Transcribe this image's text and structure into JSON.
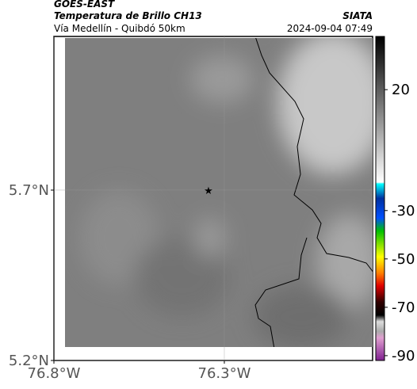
{
  "header": {
    "title": "GOES-EAST",
    "subtitle": "Temperatura de Brillo CH13",
    "source": "SIATA",
    "route": "Vía Medellín - Quibdó 50km",
    "timestamp": "2024-09-04 07:49"
  },
  "map": {
    "xlim": [
      -76.8,
      -75.865
    ],
    "ylim": [
      5.2,
      6.151
    ],
    "xticks": [
      {
        "value": -76.8,
        "label": "76.8°W"
      },
      {
        "value": -76.3,
        "label": "76.3°W"
      }
    ],
    "yticks": [
      {
        "value": 5.2,
        "label": "5.2°N"
      },
      {
        "value": 5.7,
        "label": "5.7°N"
      }
    ],
    "colorbar": {
      "lim": [
        -92,
        42
      ],
      "ticks": [
        20,
        -30,
        -50,
        -70,
        -90
      ]
    }
  }
}
